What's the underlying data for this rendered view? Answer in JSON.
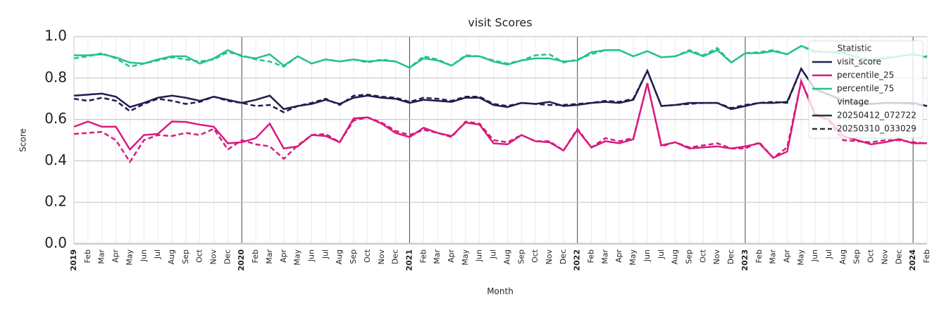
{
  "chart_data": {
    "type": "line",
    "title": "visit Scores",
    "x_label": "Month",
    "y_label": "Score",
    "categories": [
      "2019",
      "Feb",
      "Mar",
      "Apr",
      "May",
      "Jun",
      "Jul",
      "Aug",
      "Sep",
      "Oct",
      "Nov",
      "Dec",
      "2020",
      "Feb",
      "Mar",
      "Apr",
      "May",
      "Jun",
      "Jul",
      "Aug",
      "Sep",
      "Oct",
      "Nov",
      "Dec",
      "2021",
      "Feb",
      "Mar",
      "Apr",
      "May",
      "Jun",
      "Jul",
      "Aug",
      "Sep",
      "Oct",
      "Nov",
      "Dec",
      "2022",
      "Feb",
      "Mar",
      "Apr",
      "May",
      "Jun",
      "Jul",
      "Aug",
      "Sep",
      "Oct",
      "Nov",
      "Dec",
      "2023",
      "Feb",
      "Mar",
      "Apr",
      "May",
      "Jun",
      "Jul",
      "Aug",
      "Sep",
      "Oct",
      "Nov",
      "Dec",
      "2024",
      "Feb"
    ],
    "ylim": [
      0,
      1
    ],
    "yticks": [
      {
        "value": 0,
        "label": "0.0"
      },
      0.2,
      0.4,
      0.6,
      0.8,
      {
        "value": 1,
        "label": "1.0"
      }
    ],
    "grid": true,
    "legend": {
      "title": "Statistic",
      "vintage_title": "vintage",
      "position": "upper right"
    },
    "vintages": [
      {
        "name": "20250412_072722",
        "dash": "solid"
      },
      {
        "name": "20250310_033029",
        "dash": "dashed"
      }
    ],
    "series": [
      {
        "name": "visit_score",
        "color": "#1e1f4f",
        "values": [
          [
            0.715,
            0.72,
            0.725,
            0.71,
            0.66,
            0.68,
            0.705,
            0.715,
            0.705,
            0.69,
            0.71,
            0.695,
            0.68,
            0.695,
            0.715,
            0.65,
            0.665,
            0.675,
            0.695,
            0.675,
            0.705,
            0.715,
            0.705,
            0.7,
            0.68,
            0.695,
            0.69,
            0.685,
            0.705,
            0.705,
            0.67,
            0.66,
            0.68,
            0.675,
            0.685,
            0.665,
            0.67,
            0.68,
            0.685,
            0.68,
            0.695,
            0.835,
            0.665,
            0.67,
            0.68,
            0.68,
            0.68,
            0.65,
            0.665,
            0.68,
            0.68,
            0.685,
            0.845,
            0.745,
            0.72,
            0.69,
            0.68,
            0.675,
            0.68,
            0.68,
            0.68,
            0.665
          ],
          [
            0.7,
            0.69,
            0.705,
            0.69,
            0.64,
            0.675,
            0.7,
            0.69,
            0.675,
            0.685,
            0.71,
            0.69,
            0.68,
            0.665,
            0.67,
            0.635,
            0.665,
            0.68,
            0.7,
            0.67,
            0.715,
            0.72,
            0.71,
            0.705,
            0.685,
            0.705,
            0.7,
            0.69,
            0.71,
            0.71,
            0.675,
            0.665,
            0.68,
            0.675,
            0.67,
            0.67,
            0.675,
            0.68,
            0.69,
            0.685,
            0.7,
            0.835,
            0.665,
            0.67,
            0.675,
            0.68,
            0.68,
            0.655,
            0.67,
            0.68,
            0.685,
            0.68,
            0.845,
            0.745,
            0.72,
            0.69,
            0.68,
            0.675,
            0.68,
            0.68,
            0.675,
            0.665
          ]
        ]
      },
      {
        "name": "percentile_25",
        "color": "#d81b7e",
        "values": [
          [
            0.565,
            0.59,
            0.565,
            0.565,
            0.455,
            0.525,
            0.53,
            0.59,
            0.588,
            0.575,
            0.565,
            0.485,
            0.49,
            0.51,
            0.58,
            0.46,
            0.47,
            0.525,
            0.52,
            0.49,
            0.605,
            0.61,
            0.58,
            0.535,
            0.515,
            0.56,
            0.535,
            0.52,
            0.585,
            0.575,
            0.485,
            0.48,
            0.525,
            0.495,
            0.49,
            0.45,
            0.55,
            0.465,
            0.495,
            0.485,
            0.505,
            0.775,
            0.475,
            0.49,
            0.46,
            0.465,
            0.47,
            0.46,
            0.47,
            0.485,
            0.415,
            0.445,
            0.785,
            0.62,
            0.6,
            0.52,
            0.5,
            0.48,
            0.49,
            0.505,
            0.485,
            0.485
          ],
          [
            0.53,
            0.535,
            0.54,
            0.5,
            0.395,
            0.5,
            0.525,
            0.52,
            0.535,
            0.525,
            0.555,
            0.455,
            0.5,
            0.48,
            0.47,
            0.41,
            0.475,
            0.525,
            0.53,
            0.49,
            0.595,
            0.61,
            0.585,
            0.545,
            0.525,
            0.55,
            0.535,
            0.515,
            0.59,
            0.58,
            0.5,
            0.49,
            0.525,
            0.495,
            0.495,
            0.45,
            0.555,
            0.465,
            0.51,
            0.495,
            0.51,
            0.775,
            0.47,
            0.49,
            0.465,
            0.475,
            0.485,
            0.46,
            0.46,
            0.49,
            0.415,
            0.465,
            0.785,
            0.63,
            0.59,
            0.5,
            0.495,
            0.49,
            0.5,
            0.5,
            0.49,
            0.485
          ]
        ]
      },
      {
        "name": "percentile_75",
        "color": "#25c38b",
        "values": [
          [
            0.91,
            0.91,
            0.915,
            0.9,
            0.875,
            0.87,
            0.89,
            0.905,
            0.905,
            0.87,
            0.895,
            0.935,
            0.905,
            0.895,
            0.915,
            0.86,
            0.905,
            0.87,
            0.89,
            0.88,
            0.89,
            0.88,
            0.885,
            0.88,
            0.85,
            0.895,
            0.885,
            0.86,
            0.905,
            0.905,
            0.88,
            0.865,
            0.885,
            0.895,
            0.895,
            0.88,
            0.885,
            0.925,
            0.935,
            0.935,
            0.905,
            0.93,
            0.9,
            0.905,
            0.93,
            0.905,
            0.935,
            0.875,
            0.92,
            0.92,
            0.93,
            0.915,
            0.955,
            0.93,
            0.925,
            0.92,
            0.9,
            0.885,
            0.895,
            0.905,
            0.915,
            0.9
          ],
          [
            0.895,
            0.905,
            0.92,
            0.895,
            0.855,
            0.87,
            0.885,
            0.9,
            0.89,
            0.88,
            0.89,
            0.925,
            0.91,
            0.89,
            0.88,
            0.855,
            0.905,
            0.87,
            0.89,
            0.88,
            0.89,
            0.875,
            0.89,
            0.88,
            0.85,
            0.905,
            0.89,
            0.86,
            0.91,
            0.905,
            0.885,
            0.87,
            0.885,
            0.91,
            0.915,
            0.875,
            0.89,
            0.915,
            0.935,
            0.935,
            0.905,
            0.93,
            0.9,
            0.905,
            0.935,
            0.91,
            0.945,
            0.875,
            0.92,
            0.925,
            0.935,
            0.915,
            0.955,
            0.925,
            0.925,
            0.925,
            0.9,
            0.89,
            0.9,
            0.905,
            0.915,
            0.905
          ]
        ]
      }
    ]
  }
}
